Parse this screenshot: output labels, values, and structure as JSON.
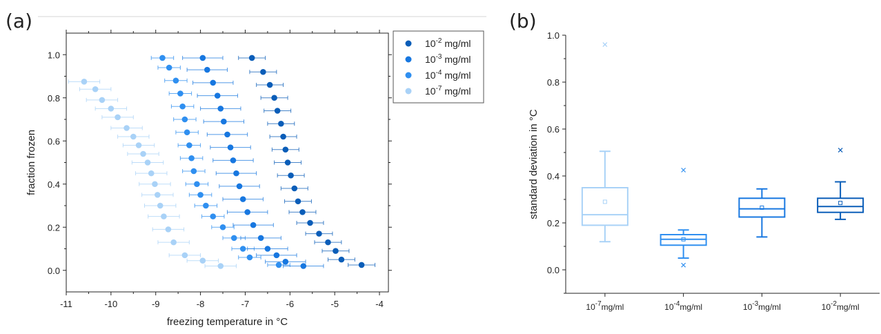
{
  "panels": {
    "a_label": "(a)",
    "b_label": "(b)"
  },
  "chart_data": [
    {
      "type": "scatter",
      "panel": "(a)",
      "xlabel": "freezing temperature in °C",
      "ylabel": "fraction frozen",
      "xlim": [
        -11,
        -3.8
      ],
      "ylim": [
        -0.1,
        1.1
      ],
      "xticks": [
        "-11",
        "-10",
        "-9",
        "-8",
        "-7",
        "-6",
        "-5",
        "-4"
      ],
      "yticks": [
        "0.0",
        "0.2",
        "0.4",
        "0.6",
        "0.8",
        "1.0"
      ],
      "grid": false,
      "legend_position": "top-right",
      "error_bars": "horizontal",
      "series": [
        {
          "name_base": "10",
          "name_exp": "-2",
          "name_unit": " mg/ml",
          "color": "#0a5db8",
          "xerr": 0.3,
          "points": [
            [
              -6.85,
              0.985
            ],
            [
              -6.6,
              0.92
            ],
            [
              -6.45,
              0.86
            ],
            [
              -6.35,
              0.8
            ],
            [
              -6.28,
              0.74
            ],
            [
              -6.2,
              0.68
            ],
            [
              -6.15,
              0.62
            ],
            [
              -6.1,
              0.56
            ],
            [
              -6.05,
              0.5
            ],
            [
              -5.98,
              0.44
            ],
            [
              -5.9,
              0.38
            ],
            [
              -5.82,
              0.32
            ],
            [
              -5.72,
              0.27
            ],
            [
              -5.55,
              0.22
            ],
            [
              -5.35,
              0.17
            ],
            [
              -5.15,
              0.13
            ],
            [
              -4.98,
              0.09
            ],
            [
              -4.85,
              0.05
            ],
            [
              -4.4,
              0.025
            ]
          ]
        },
        {
          "name_base": "10",
          "name_exp": "-3",
          "name_unit": " mg/ml",
          "color": "#1777e0",
          "xerr": 0.45,
          "points": [
            [
              -7.95,
              0.985
            ],
            [
              -7.85,
              0.93
            ],
            [
              -7.72,
              0.87
            ],
            [
              -7.62,
              0.81
            ],
            [
              -7.55,
              0.75
            ],
            [
              -7.48,
              0.69
            ],
            [
              -7.4,
              0.63
            ],
            [
              -7.33,
              0.57
            ],
            [
              -7.27,
              0.51
            ],
            [
              -7.2,
              0.45
            ],
            [
              -7.13,
              0.39
            ],
            [
              -7.05,
              0.33
            ],
            [
              -6.95,
              0.27
            ],
            [
              -6.82,
              0.21
            ],
            [
              -6.65,
              0.15
            ],
            [
              -6.5,
              0.1
            ],
            [
              -6.3,
              0.07
            ],
            [
              -6.1,
              0.04
            ],
            [
              -5.7,
              0.02
            ]
          ]
        },
        {
          "name_base": "10",
          "name_exp": "-4",
          "name_unit": " mg/ml",
          "color": "#2f8ff0",
          "xerr": 0.25,
          "points": [
            [
              -8.85,
              0.985
            ],
            [
              -8.7,
              0.94
            ],
            [
              -8.55,
              0.88
            ],
            [
              -8.45,
              0.82
            ],
            [
              -8.4,
              0.76
            ],
            [
              -8.35,
              0.7
            ],
            [
              -8.3,
              0.64
            ],
            [
              -8.25,
              0.58
            ],
            [
              -8.2,
              0.52
            ],
            [
              -8.15,
              0.46
            ],
            [
              -8.08,
              0.4
            ],
            [
              -8.0,
              0.35
            ],
            [
              -7.88,
              0.3
            ],
            [
              -7.72,
              0.25
            ],
            [
              -7.5,
              0.2
            ],
            [
              -7.25,
              0.15
            ],
            [
              -7.05,
              0.1
            ],
            [
              -6.9,
              0.06
            ],
            [
              -6.25,
              0.025
            ]
          ]
        },
        {
          "name_base": "10",
          "name_exp": "-7",
          "name_unit": " mg/ml",
          "color": "#a9d2f7",
          "xerr": 0.35,
          "points": [
            [
              -10.6,
              0.875
            ],
            [
              -10.35,
              0.84
            ],
            [
              -10.2,
              0.79
            ],
            [
              -10.0,
              0.75
            ],
            [
              -9.85,
              0.71
            ],
            [
              -9.65,
              0.66
            ],
            [
              -9.5,
              0.62
            ],
            [
              -9.38,
              0.58
            ],
            [
              -9.28,
              0.54
            ],
            [
              -9.18,
              0.5
            ],
            [
              -9.1,
              0.45
            ],
            [
              -9.02,
              0.4
            ],
            [
              -8.96,
              0.35
            ],
            [
              -8.9,
              0.3
            ],
            [
              -8.82,
              0.25
            ],
            [
              -8.72,
              0.19
            ],
            [
              -8.6,
              0.13
            ],
            [
              -8.35,
              0.07
            ],
            [
              -7.95,
              0.045
            ],
            [
              -7.55,
              0.02
            ]
          ]
        }
      ]
    },
    {
      "type": "box",
      "panel": "(b)",
      "ylabel": "standard deviation in °C",
      "ylim": [
        -0.1,
        1.0
      ],
      "yticks": [
        "0.0",
        "0.2",
        "0.4",
        "0.6",
        "0.8",
        "1.0"
      ],
      "grid": false,
      "categories": [
        {
          "base": "10",
          "exp": "-7",
          "unit": "mg/ml"
        },
        {
          "base": "10",
          "exp": "-4",
          "unit": "mg/ml"
        },
        {
          "base": "10",
          "exp": "-3",
          "unit": "mg/ml"
        },
        {
          "base": "10",
          "exp": "-2",
          "unit": "mg/ml"
        }
      ],
      "boxes": [
        {
          "color": "#a9d2f7",
          "whisker_low": 0.12,
          "q1": 0.19,
          "median": 0.235,
          "q3": 0.35,
          "whisker_high": 0.505,
          "mean": 0.29,
          "outliers": [
            0.96
          ]
        },
        {
          "color": "#2f8ff0",
          "whisker_low": 0.05,
          "q1": 0.105,
          "median": 0.13,
          "q3": 0.15,
          "whisker_high": 0.17,
          "mean": 0.13,
          "outliers": [
            0.425,
            0.02
          ]
        },
        {
          "color": "#1777e0",
          "whisker_low": 0.14,
          "q1": 0.225,
          "median": 0.26,
          "q3": 0.305,
          "whisker_high": 0.345,
          "mean": 0.265,
          "outliers": []
        },
        {
          "color": "#0a5db8",
          "whisker_low": 0.215,
          "q1": 0.245,
          "median": 0.27,
          "q3": 0.305,
          "whisker_high": 0.375,
          "mean": 0.285,
          "outliers": [
            0.51
          ]
        }
      ]
    }
  ]
}
